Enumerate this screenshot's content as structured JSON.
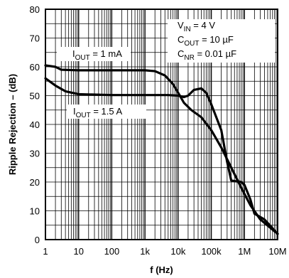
{
  "chart_data": {
    "type": "line",
    "xlabel": "f (Hz)",
    "ylabel": "Ripple Rejection – (dB)",
    "xscale": "log",
    "xlim": [
      1,
      10000000
    ],
    "ylim": [
      0,
      80
    ],
    "grid": "on (log minor grid on x, 5 dB grid on y)",
    "x_ticks": [
      {
        "value": 1,
        "label": "1"
      },
      {
        "value": 10,
        "label": "10"
      },
      {
        "value": 100,
        "label": "100"
      },
      {
        "value": 1000,
        "label": "1k"
      },
      {
        "value": 10000,
        "label": "10k"
      },
      {
        "value": 100000,
        "label": "100k"
      },
      {
        "value": 1000000,
        "label": "1M"
      },
      {
        "value": 10000000,
        "label": "10M"
      }
    ],
    "y_ticks": [
      0,
      10,
      20,
      30,
      40,
      50,
      60,
      70,
      80
    ],
    "conditions": [
      {
        "main": "V",
        "sub": "IN",
        "rest": " = 4 V"
      },
      {
        "main": "C",
        "sub": "OUT",
        "rest": " = 10 µF"
      },
      {
        "main": "C",
        "sub": "NR",
        "rest": " = 0.01 µF"
      }
    ],
    "series": [
      {
        "label": {
          "main": "I",
          "sub": "OUT",
          "rest": " = 1 mA"
        },
        "points": [
          [
            1,
            60.5
          ],
          [
            2,
            60
          ],
          [
            3,
            59
          ],
          [
            10,
            58.8
          ],
          [
            100,
            58.8
          ],
          [
            1000,
            58.8
          ],
          [
            2000,
            58.5
          ],
          [
            4000,
            57
          ],
          [
            7000,
            54
          ],
          [
            10000,
            51
          ],
          [
            15000,
            47.5
          ],
          [
            25000,
            45
          ],
          [
            50000,
            42.5
          ],
          [
            100000,
            38
          ],
          [
            200000,
            32
          ],
          [
            400000,
            25
          ],
          [
            800000,
            18
          ],
          [
            1500000,
            12
          ],
          [
            3000000,
            7
          ],
          [
            10000000,
            2
          ]
        ]
      },
      {
        "label": {
          "main": "I",
          "sub": "OUT",
          "rest": " = 1.5 A"
        },
        "points": [
          [
            1,
            56
          ],
          [
            2,
            53.5
          ],
          [
            4,
            51.5
          ],
          [
            10,
            50.5
          ],
          [
            100,
            50.2
          ],
          [
            1000,
            50.2
          ],
          [
            5000,
            50.2
          ],
          [
            10000,
            50
          ],
          [
            15000,
            49.5
          ],
          [
            20000,
            50
          ],
          [
            30000,
            52
          ],
          [
            50000,
            52.5
          ],
          [
            70000,
            51
          ],
          [
            100000,
            47
          ],
          [
            200000,
            38
          ],
          [
            300000,
            27
          ],
          [
            400000,
            20.5
          ],
          [
            800000,
            20
          ],
          [
            1000000,
            19
          ],
          [
            1500000,
            14
          ],
          [
            2000000,
            9
          ],
          [
            4000000,
            7
          ],
          [
            10000000,
            2
          ]
        ]
      }
    ]
  }
}
